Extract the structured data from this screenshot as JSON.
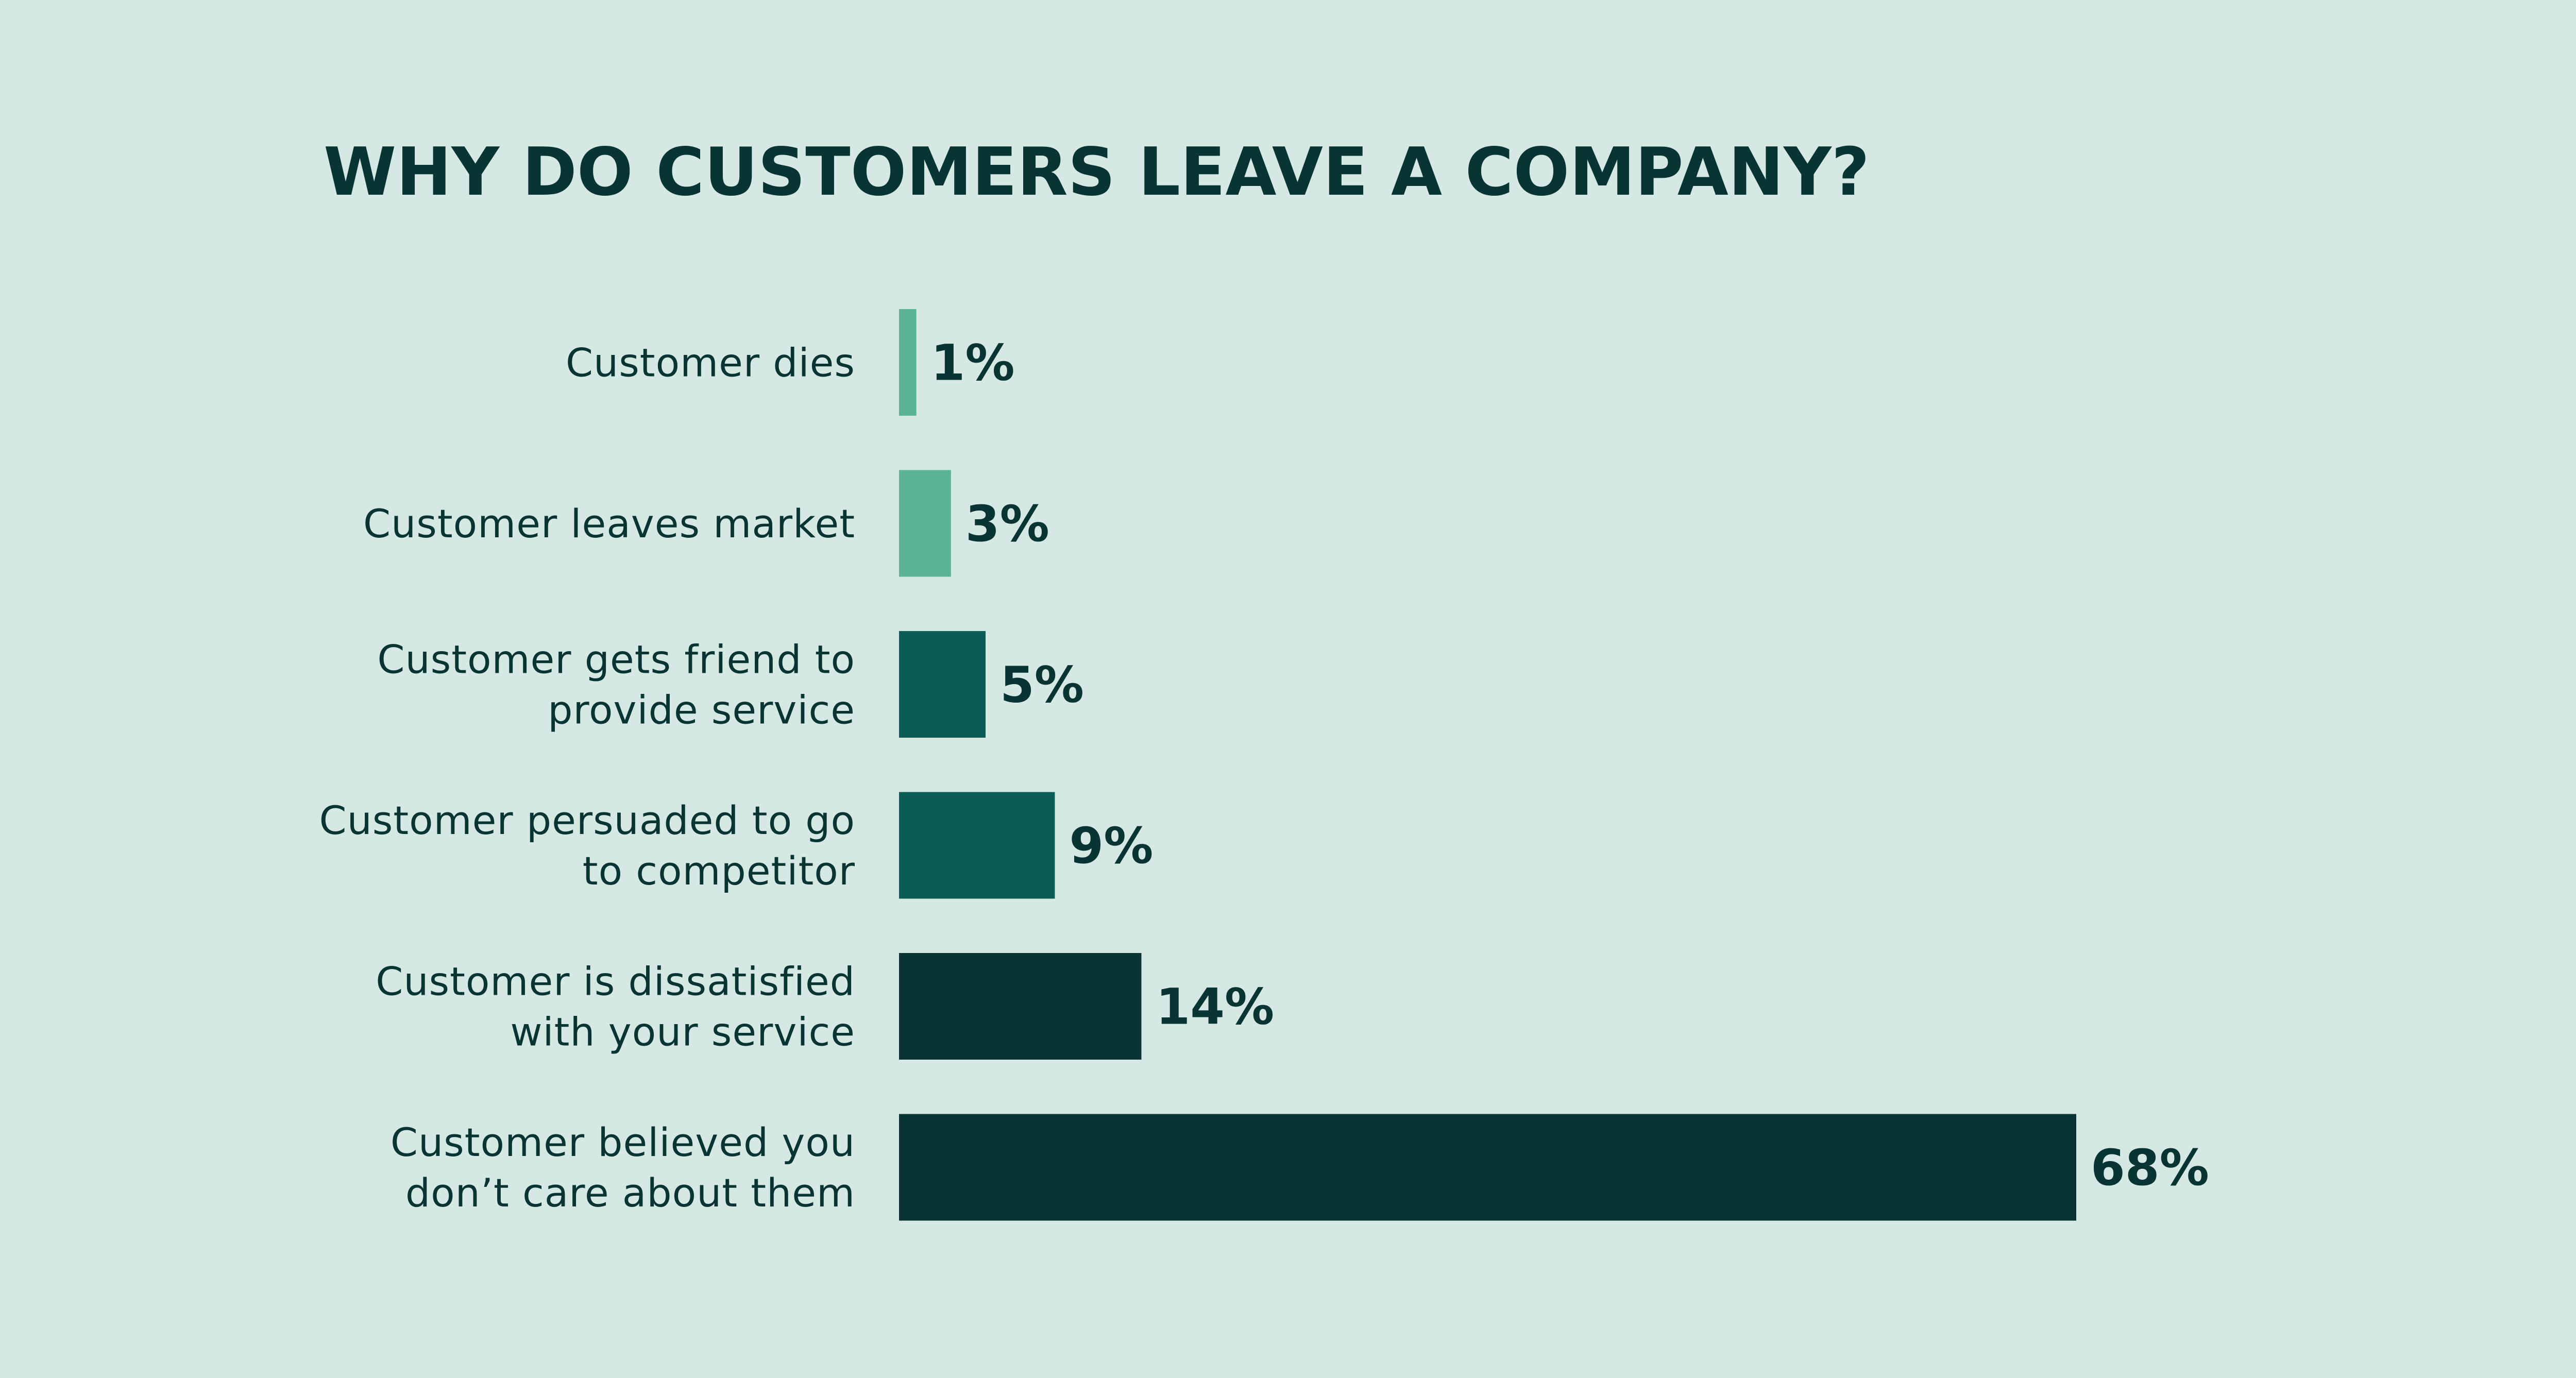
{
  "chart_data": {
    "type": "bar",
    "orientation": "horizontal",
    "title": "WHY DO CUSTOMERS LEAVE A COMPANY?",
    "categories": [
      [
        "Customer dies"
      ],
      [
        "Customer leaves market"
      ],
      [
        "Customer gets friend to",
        "provide service"
      ],
      [
        "Customer persuaded to go",
        "to competitor"
      ],
      [
        "Customer is dissatisfied",
        "with your service"
      ],
      [
        "Customer believed you",
        "don’t care about them"
      ]
    ],
    "values": [
      1,
      3,
      5,
      9,
      14,
      68
    ],
    "value_labels": [
      "1%",
      "3%",
      "5%",
      "9%",
      "14%",
      "68%"
    ],
    "unit": "%",
    "bar_colors": [
      "#58b397",
      "#58b397",
      "#095d56",
      "#095d56",
      "#083533",
      "#083533"
    ],
    "xlim": [
      0,
      68
    ],
    "grid": false,
    "legend": "none"
  },
  "colors": {
    "background": "#d5e8e3",
    "text": "#083533",
    "light_bar": "#58b397",
    "mid_bar": "#095d56",
    "dark_bar": "#083533"
  }
}
